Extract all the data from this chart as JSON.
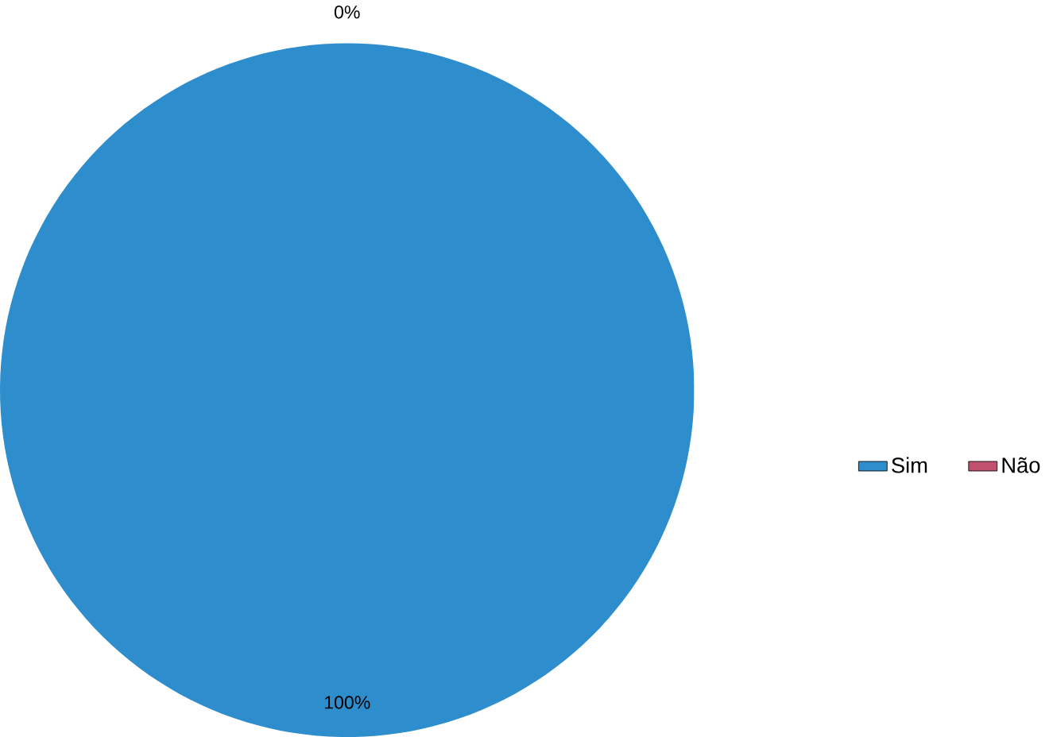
{
  "chart_data": {
    "type": "pie",
    "categories": [
      "Sim",
      "Não"
    ],
    "values": [
      100,
      0
    ],
    "colors": [
      "#2e8dcc",
      "#c2516f"
    ],
    "value_labels": [
      "100%",
      "0%"
    ],
    "legend": "right"
  }
}
